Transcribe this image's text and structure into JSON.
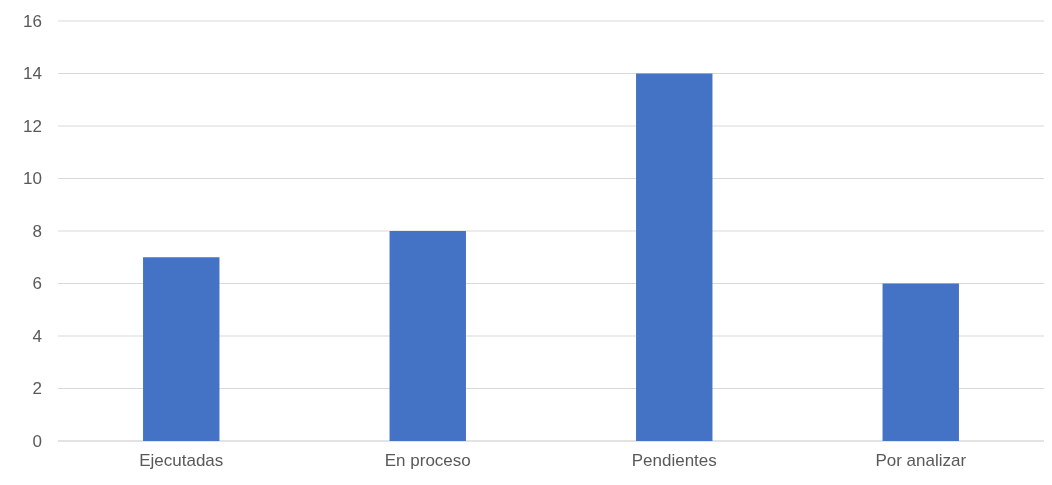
{
  "chart_data": {
    "type": "bar",
    "categories": [
      "Ejecutadas",
      "En proceso",
      "Pendientes",
      "Por analizar"
    ],
    "values": [
      7,
      8,
      14,
      6
    ],
    "color": "#4472c4",
    "ylim": [
      0,
      16
    ],
    "yticks": [
      0,
      2,
      4,
      6,
      8,
      10,
      12,
      14,
      16
    ],
    "grid": "y"
  }
}
